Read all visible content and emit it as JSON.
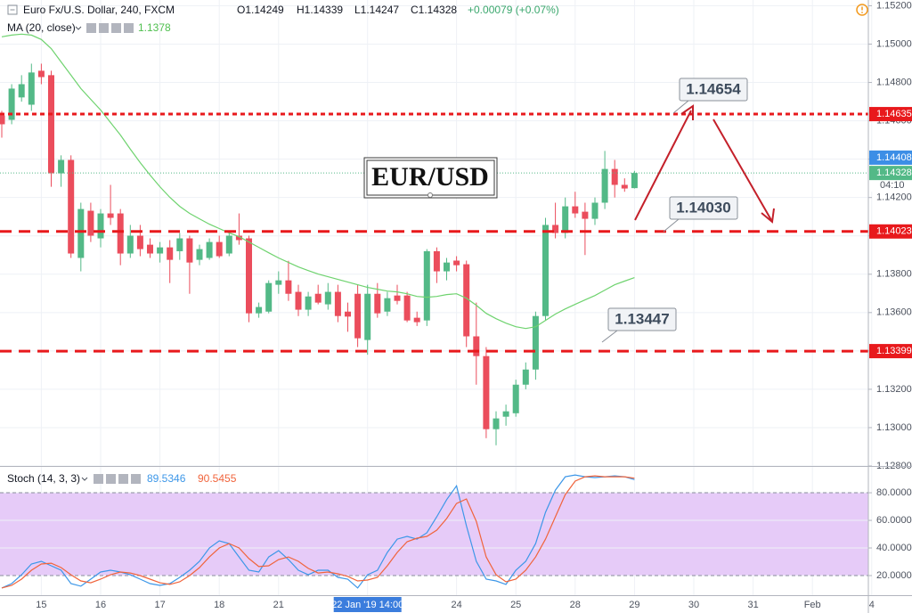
{
  "chart_data": [
    {
      "type": "candlestick",
      "symbol": "Euro Fx/U.S. Dollar, 240, FXCM",
      "ohlc_readout": [
        "O1.14249",
        "H1.14339",
        "L1.14247",
        "C1.14328"
      ],
      "change": "+0.00079 (+0.07%)",
      "title": "EUR/USD",
      "categories": [
        null,
        null,
        null,
        null,
        "15",
        null,
        null,
        null,
        null,
        null,
        "16",
        null,
        null,
        null,
        null,
        null,
        "17",
        null,
        null,
        null,
        null,
        null,
        "18",
        null,
        null,
        null,
        null,
        null,
        "21",
        null,
        null,
        null,
        null,
        null,
        null,
        null,
        null,
        "22 Jan '19  14:00",
        null,
        null,
        null,
        null,
        null,
        null,
        null,
        null,
        "24",
        null,
        null,
        null,
        null,
        null,
        "25",
        null,
        null,
        null,
        null,
        null,
        "28",
        null,
        null,
        null,
        null,
        null,
        "29",
        null,
        null,
        null,
        null,
        null,
        "30",
        null,
        null,
        null,
        null,
        null,
        "31",
        null,
        null,
        null,
        null,
        null,
        "Feb",
        null,
        null,
        null,
        null,
        null,
        "4"
      ],
      "open": [
        1.14628,
        1.14605,
        1.14722,
        1.14684,
        1.14861,
        1.14838,
        1.14326,
        1.14396,
        1.13885,
        1.14131,
        1.13987,
        1.14117,
        1.14117,
        1.13908,
        1.14001,
        1.13954,
        1.13908,
        1.1394,
        1.1392,
        1.13987,
        1.13875,
        1.13885,
        1.13968,
        1.13908,
        1.14001,
        1.13987,
        1.13596,
        1.13605,
        1.13745,
        1.13768,
        1.13708,
        1.13615,
        1.13698,
        1.13643,
        1.13708,
        1.13605,
        1.13698,
        1.13457,
        1.13698,
        1.13605,
        1.13689,
        1.13689,
        1.13573,
        1.13559,
        1.1392,
        1.13815,
        1.13871,
        1.13852,
        1.13476,
        1.13373,
        1.12992,
        1.13057,
        1.13075,
        1.13224,
        1.13303,
        1.13582,
        1.14057,
        1.14015,
        1.14154,
        1.14126,
        1.14089,
        1.14173,
        1.14349,
        1.14266,
        1.14249,
        null,
        null,
        null,
        null,
        null,
        null,
        null,
        null,
        null,
        null,
        null,
        null,
        null,
        null,
        null,
        null,
        null,
        null,
        null,
        null,
        null,
        null,
        null,
        null
      ],
      "high": [
        1.14652,
        1.14791,
        1.14838,
        1.14898,
        1.14898,
        1.14861,
        1.1442,
        1.1442,
        1.14173,
        1.14173,
        1.1414,
        1.14266,
        1.1414,
        1.14057,
        1.14057,
        1.13987,
        1.13968,
        1.13978,
        1.14015,
        1.14001,
        1.13954,
        1.13987,
        1.14001,
        1.14015,
        1.14117,
        1.14001,
        1.13652,
        1.13768,
        1.13815,
        1.1387,
        1.13745,
        1.13708,
        1.13745,
        1.13754,
        1.13745,
        1.13652,
        1.13745,
        1.13745,
        1.13754,
        1.13708,
        1.13745,
        1.13708,
        1.13605,
        1.13931,
        1.1394,
        1.13885,
        1.13894,
        1.13871,
        1.13652,
        1.1342,
        1.13085,
        1.1312,
        1.1325,
        1.1334,
        1.13605,
        1.14094,
        1.14173,
        1.142,
        1.1423,
        1.14173,
        1.142,
        1.14443,
        1.14396,
        1.143,
        1.14339,
        null,
        null,
        null,
        null,
        null,
        null,
        null,
        null,
        null,
        null,
        null,
        null,
        null,
        null,
        null,
        null,
        null,
        null,
        null,
        null,
        null,
        null,
        null,
        null
      ],
      "low": [
        1.14512,
        1.14582,
        1.147,
        1.14652,
        1.14791,
        1.14256,
        1.14256,
        1.13885,
        1.13815,
        1.13968,
        1.1394,
        1.14057,
        1.13847,
        1.13885,
        1.13894,
        1.13885,
        1.13861,
        1.13754,
        1.13875,
        1.13698,
        1.13847,
        1.13875,
        1.13885,
        1.13894,
        1.13954,
        1.1355,
        1.13573,
        1.13596,
        1.13698,
        1.13661,
        1.13582,
        1.13582,
        1.13643,
        1.13615,
        1.1355,
        1.135,
        1.1342,
        1.1338,
        1.13573,
        1.13582,
        1.13643,
        1.1355,
        1.1353,
        1.1353,
        1.13754,
        1.13768,
        1.13815,
        1.1342,
        1.13224,
        1.12945,
        1.12908,
        1.1301,
        1.13057,
        1.132,
        1.1325,
        1.13559,
        1.13987,
        1.13987,
        1.14094,
        1.139,
        1.14057,
        1.1414,
        1.142,
        1.1423,
        1.14247,
        null,
        null,
        null,
        null,
        null,
        null,
        null,
        null,
        null,
        null,
        null,
        null,
        null,
        null,
        null,
        null,
        null,
        null,
        null,
        null,
        null,
        null,
        null,
        null
      ],
      "close": [
        1.14582,
        1.14768,
        1.14791,
        1.14852,
        1.14828,
        1.14326,
        1.14396,
        1.13908,
        1.1414,
        1.14001,
        1.14117,
        1.14094,
        1.13908,
        1.14001,
        1.13931,
        1.13908,
        1.1394,
        1.13875,
        1.13987,
        1.13861,
        1.13931,
        1.13968,
        1.13894,
        1.14001,
        1.13978,
        1.13596,
        1.13629,
        1.13754,
        1.13768,
        1.13698,
        1.13615,
        1.13684,
        1.13652,
        1.13708,
        1.13582,
        1.13579,
        1.13466,
        1.13698,
        1.13596,
        1.13675,
        1.13661,
        1.13559,
        1.1355,
        1.1392,
        1.13815,
        1.13861,
        1.13847,
        1.13476,
        1.13373,
        1.12992,
        1.13048,
        1.13085,
        1.13224,
        1.13303,
        1.13582,
        1.14057,
        1.14015,
        1.14154,
        1.14117,
        1.14089,
        1.14173,
        1.14349,
        1.14266,
        1.14247,
        1.14328,
        null,
        null,
        null,
        null,
        null,
        null,
        null,
        null,
        null,
        null,
        null,
        null,
        null,
        null,
        null,
        null,
        null,
        null,
        null,
        null,
        null,
        null,
        null,
        null
      ],
      "up_color": "#53b987",
      "down_color": "#eb4d5c",
      "overlay": {
        "name": "MA (20, close)",
        "value_label": "1.1378",
        "color": "#6fd36f",
        "values": [
          1.15038,
          1.15047,
          1.15052,
          1.15047,
          1.15024,
          1.14977,
          1.14907,
          1.14838,
          1.14768,
          1.14712,
          1.14656,
          1.14591,
          1.14526,
          1.14452,
          1.14382,
          1.14317,
          1.14256,
          1.14201,
          1.14154,
          1.14117,
          1.14089,
          1.14061,
          1.14038,
          1.14015,
          1.13996,
          1.13968,
          1.1394,
          1.13912,
          1.13885,
          1.13861,
          1.13838,
          1.13819,
          1.13801,
          1.13787,
          1.13773,
          1.13759,
          1.13745,
          1.13731,
          1.13722,
          1.13712,
          1.13708,
          1.13698,
          1.13684,
          1.1368,
          1.13684,
          1.13694,
          1.13698,
          1.13675,
          1.13638,
          1.13596,
          1.13568,
          1.13545,
          1.13526,
          1.13517,
          1.13526,
          1.13559,
          1.13592,
          1.13619,
          1.13643,
          1.13666,
          1.13689,
          1.13717,
          1.13745,
          1.13764,
          1.13782,
          null,
          null,
          null,
          null,
          null,
          null,
          null,
          null,
          null,
          null,
          null,
          null,
          null,
          null,
          null,
          null,
          null,
          null,
          null,
          null,
          null,
          null,
          null,
          null
        ]
      },
      "levels": [
        {
          "value": 1.14635,
          "style": "dotted"
        },
        {
          "value": 1.14023,
          "style": "dashed"
        },
        {
          "value": 1.13399,
          "style": "dashed"
        }
      ],
      "level_color": "#e8191c",
      "price_markers": [
        {
          "value": 1.14408,
          "color": "#3c8ee6"
        },
        {
          "value": 1.14328,
          "color": "#53b987",
          "countdown": "04:10"
        }
      ],
      "annotations": [
        "1.14654",
        "1.14030",
        "1.13447"
      ],
      "ylim": [
        1.128,
        1.1523
      ],
      "yticks": [
        {
          "value": 1.152,
          "label": "1.15200"
        },
        {
          "value": 1.15,
          "label": "1.15000"
        },
        {
          "value": 1.148,
          "label": "1.14800"
        },
        {
          "value": 1.146,
          "label": "1.14600"
        },
        {
          "value": 1.144,
          "label": "1.14400"
        },
        {
          "value": 1.142,
          "label": "1.14200"
        },
        {
          "value": 1.14,
          "label": "1.14000"
        },
        {
          "value": 1.138,
          "label": "1.13800"
        },
        {
          "value": 1.136,
          "label": "1.13600"
        },
        {
          "value": 1.134,
          "label": "1.13400"
        },
        {
          "value": 1.132,
          "label": "1.13200"
        },
        {
          "value": 1.13,
          "label": "1.13000"
        },
        {
          "value": 1.128,
          "label": "1.12800"
        }
      ],
      "grid": true
    },
    {
      "type": "line",
      "name": "Stoch (14, 3, 3)",
      "series": [
        {
          "color": "#3d97e8",
          "value_label": "89.5346",
          "values": [
            11.0,
            14.2,
            20.6,
            28.4,
            30.3,
            27.1,
            23.9,
            14.2,
            12.3,
            17.4,
            22.6,
            23.9,
            22.6,
            20.6,
            17.4,
            14.2,
            12.9,
            14.2,
            18.7,
            23.9,
            30.3,
            40.0,
            45.2,
            43.2,
            33.5,
            23.9,
            22.6,
            33.5,
            38.1,
            31.6,
            23.9,
            20.6,
            23.9,
            23.9,
            18.7,
            17.4,
            11.0,
            20.6,
            23.9,
            36.8,
            46.4,
            48.4,
            46.4,
            51.0,
            62.6,
            75.0,
            85.0,
            56.1,
            30.3,
            17.4,
            16.1,
            13.6,
            23.9,
            30.3,
            43.2,
            65.8,
            81.9,
            91.6,
            92.9,
            91.6,
            91.0,
            91.6,
            92.2,
            91.6,
            89.5346,
            null,
            null,
            null,
            null,
            null,
            null,
            null,
            null,
            null,
            null,
            null,
            null,
            null,
            null,
            null,
            null,
            null,
            null,
            null,
            null,
            null,
            null,
            null,
            null
          ]
        },
        {
          "color": "#f0643c",
          "value_label": "90.5455",
          "values": [
            11.0,
            12.9,
            17.4,
            23.9,
            28.4,
            29.0,
            25.8,
            20.6,
            16.1,
            14.8,
            17.4,
            20.6,
            22.6,
            21.9,
            20.0,
            17.4,
            14.8,
            13.6,
            15.5,
            20.0,
            25.8,
            33.5,
            40.0,
            43.2,
            40.0,
            32.3,
            26.5,
            27.1,
            31.6,
            33.5,
            30.3,
            25.2,
            21.9,
            22.6,
            21.3,
            19.4,
            16.1,
            16.8,
            18.7,
            27.1,
            36.8,
            44.5,
            47.1,
            48.4,
            52.9,
            61.3,
            72.2,
            75.5,
            59.3,
            33.5,
            20.6,
            15.5,
            17.4,
            23.9,
            33.5,
            46.4,
            62.6,
            78.7,
            88.4,
            91.6,
            92.2,
            91.6,
            91.6,
            91.6,
            90.5455,
            null,
            null,
            null,
            null,
            null,
            null,
            null,
            null,
            null,
            null,
            null,
            null,
            null,
            null,
            null,
            null,
            null,
            null,
            null,
            null,
            null,
            null,
            null,
            null
          ]
        }
      ],
      "band": [
        20,
        80
      ],
      "band_color": "#e6cbf8",
      "ylim": [
        5.8,
        98.1
      ],
      "yticks": [
        {
          "value": 20,
          "label": "20.0000"
        },
        {
          "value": 40,
          "label": "40.0000"
        },
        {
          "value": 60,
          "label": "60.0000"
        },
        {
          "value": 80,
          "label": "80.0000"
        }
      ],
      "grid": true
    }
  ]
}
